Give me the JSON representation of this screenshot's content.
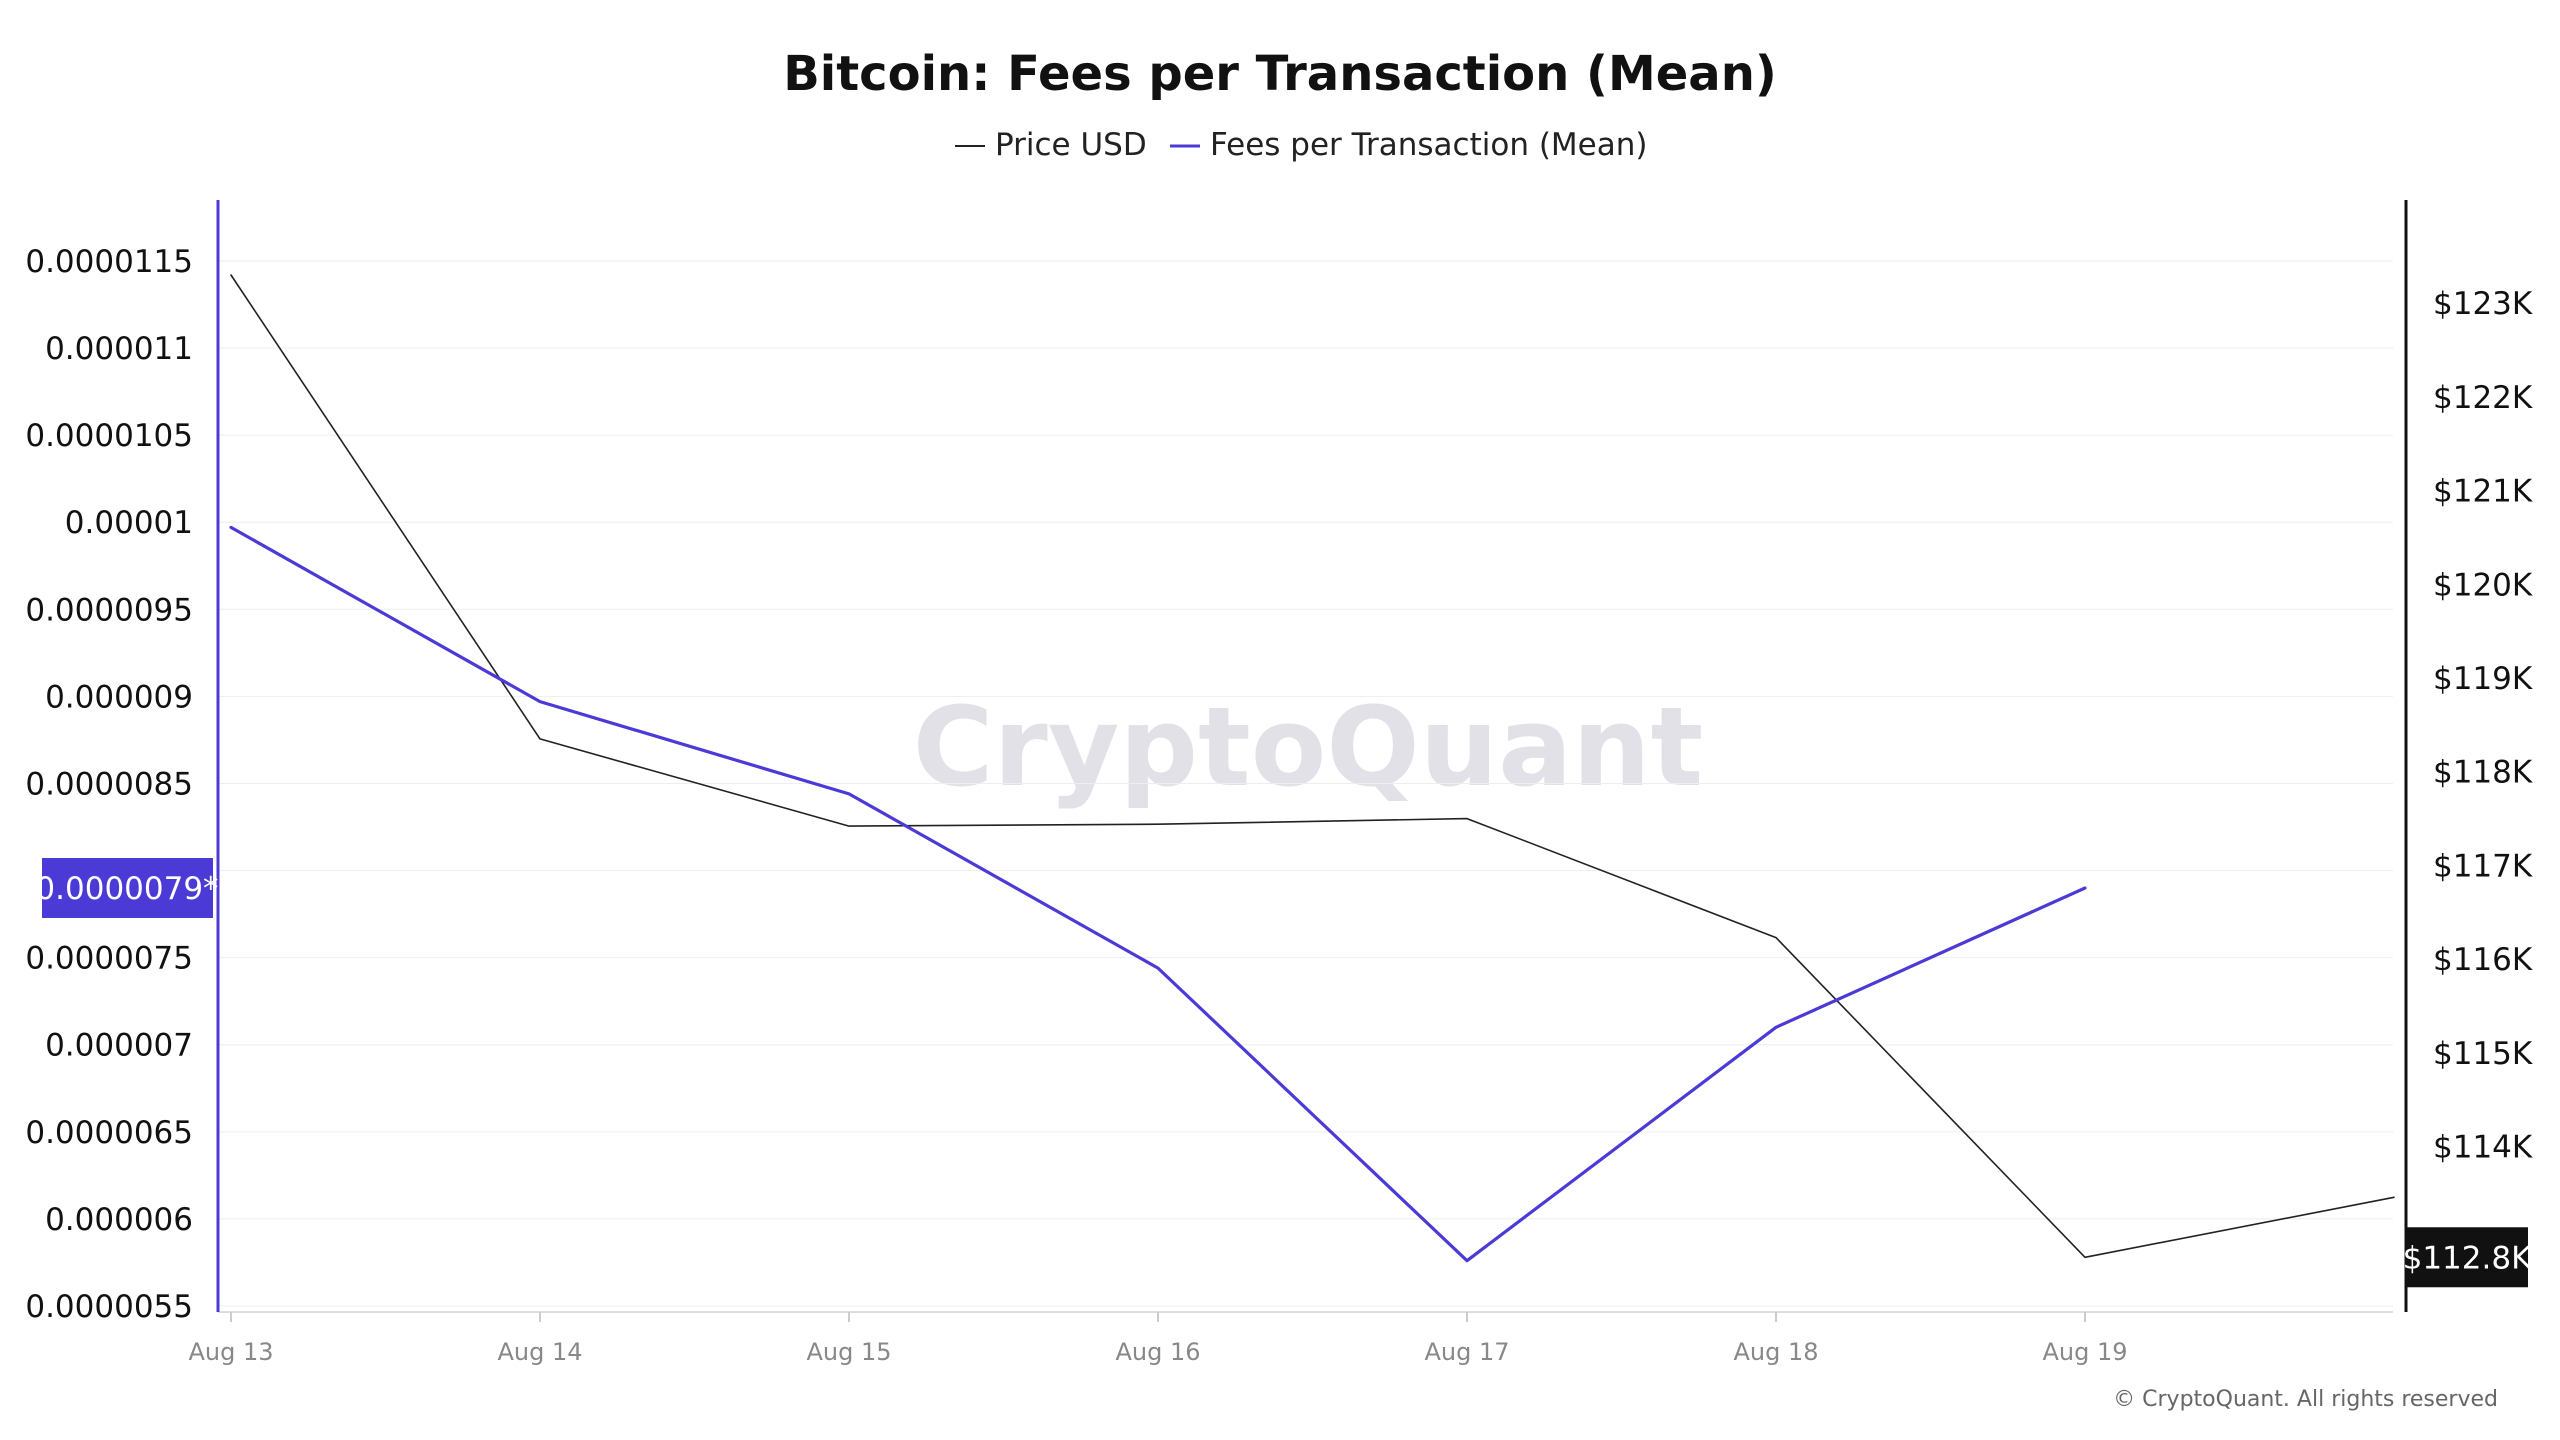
{
  "chart_data": {
    "type": "line",
    "title": "Bitcoin: Fees per Transaction (Mean)",
    "categories": [
      "Aug 13",
      "Aug 14",
      "Aug 15",
      "Aug 16",
      "Aug 17",
      "Aug 18",
      "Aug 19"
    ],
    "legend": {
      "placement": "top-center",
      "entries": [
        "Price USD",
        "Fees per Transaction (Mean)"
      ]
    },
    "series": [
      {
        "name": "Price USD",
        "axis": "right",
        "color": "#222222",
        "x": [
          0,
          1,
          2,
          3,
          4,
          5,
          6,
          7
        ],
        "values": [
          123300,
          118350,
          117420,
          117440,
          117500,
          116230,
          112820,
          113460
        ]
      },
      {
        "name": "Fees per Transaction (Mean)",
        "axis": "left",
        "color": "#4b3ad6",
        "x": [
          0,
          1,
          2,
          3,
          4,
          5,
          6
        ],
        "values": [
          9.97e-06,
          8.97e-06,
          8.44e-06,
          7.44e-06,
          5.76e-06,
          7.1e-06,
          7.9e-06
        ]
      }
    ],
    "y_left": {
      "ticks": [
        "0.0000055",
        "0.000006",
        "0.0000065",
        "0.000007",
        "0.0000075",
        "0.000008",
        "0.0000085",
        "0.000009",
        "0.0000095",
        "0.00001",
        "0.0000105",
        "0.000011",
        "0.0000115"
      ],
      "labels_shown": [
        "0.0000055",
        "0.000006",
        "0.0000065",
        "0.000007",
        "0.0000075",
        "",
        "0.0000085",
        "0.000009",
        "0.0000095",
        "0.00001",
        "0.0000105",
        "0.000011",
        "0.0000115"
      ],
      "ylim": [
        5.5e-06,
        1.185e-05
      ]
    },
    "y_right": {
      "ticks": [
        114000,
        115000,
        116000,
        117000,
        118000,
        119000,
        120000,
        121000,
        122000,
        123000
      ],
      "labels": [
        "$114K",
        "$115K",
        "$116K",
        "$117K",
        "$118K",
        "$119K",
        "$120K",
        "$121K",
        "$122K",
        "$123K"
      ],
      "ylim": [
        112300,
        124100
      ]
    },
    "grid": true,
    "badges": {
      "left": "0.0000079*",
      "left_value": 7.9e-06,
      "left_color": "#4b3ad6",
      "right": "$112.8K",
      "right_value": 112820,
      "right_color": "#111111"
    }
  },
  "watermark": "CryptoQuant",
  "copyright": "© CryptoQuant. All rights reserved"
}
